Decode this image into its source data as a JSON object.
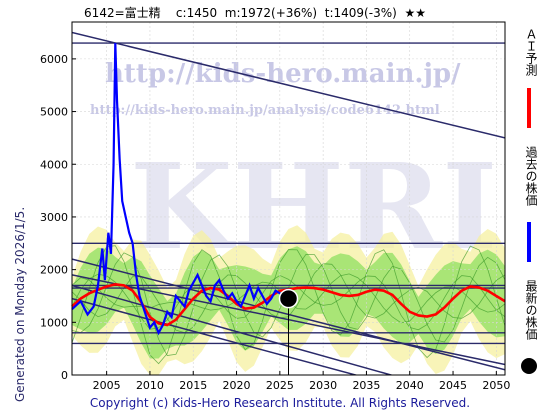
{
  "header": {
    "code_name": "6142=富士精",
    "current": "c:1450",
    "mean": "m:1972(+36%)",
    "target": "t:1409(-3%)",
    "stars": "★★"
  },
  "side_note": "Generated on Monday 2026/1/5.",
  "footer": "Copyright (c) Kids-Hero Research Institute. All Rights Reserved.",
  "watermark": {
    "url": "http://kids-hero.main.jp/",
    "url2": "http://kids-hero.main.jp/analysis/code6142.html",
    "logo": "KHRI"
  },
  "legend": {
    "ai_forecast": "ＡＩ予測",
    "past_price": "過去の株価",
    "latest_price": "最新の株価"
  },
  "colors": {
    "ai_forecast": "#ff0000",
    "past_price": "#0000ff",
    "latest_price": "#000000",
    "band_green": "#8fe060",
    "band_yellow": "#f5f0a0",
    "line_navy": "#2a2a6a"
  },
  "chart_data": {
    "type": "line",
    "x_ticks": [
      2005,
      2010,
      2015,
      2020,
      2025,
      2030,
      2035,
      2040,
      2045,
      2050
    ],
    "y_ticks": [
      0,
      1000,
      2000,
      3000,
      4000,
      5000,
      6000
    ],
    "xlim": [
      2001,
      2051
    ],
    "ylim": [
      0,
      6700
    ],
    "grid": true,
    "latest_point": {
      "x": 2026.0,
      "y": 1450
    },
    "past_price": [
      [
        2001.0,
        1250
      ],
      [
        2002.0,
        1400
      ],
      [
        2002.8,
        1150
      ],
      [
        2003.5,
        1300
      ],
      [
        2004.0,
        1700
      ],
      [
        2004.5,
        2400
      ],
      [
        2004.8,
        1800
      ],
      [
        2005.2,
        2700
      ],
      [
        2005.5,
        2300
      ],
      [
        2005.8,
        4000
      ],
      [
        2006.0,
        6300
      ],
      [
        2006.2,
        5200
      ],
      [
        2006.5,
        4100
      ],
      [
        2006.8,
        3300
      ],
      [
        2007.2,
        3000
      ],
      [
        2007.6,
        2700
      ],
      [
        2008.0,
        2500
      ],
      [
        2008.4,
        1900
      ],
      [
        2008.8,
        1500
      ],
      [
        2009.2,
        1300
      ],
      [
        2009.6,
        1100
      ],
      [
        2010.0,
        900
      ],
      [
        2010.5,
        1000
      ],
      [
        2011.0,
        800
      ],
      [
        2011.5,
        950
      ],
      [
        2012.0,
        1200
      ],
      [
        2012.5,
        1100
      ],
      [
        2013.0,
        1500
      ],
      [
        2013.5,
        1400
      ],
      [
        2014.0,
        1300
      ],
      [
        2014.5,
        1600
      ],
      [
        2015.0,
        1750
      ],
      [
        2015.5,
        1900
      ],
      [
        2016.0,
        1700
      ],
      [
        2016.5,
        1500
      ],
      [
        2017.0,
        1400
      ],
      [
        2017.5,
        1700
      ],
      [
        2018.0,
        1800
      ],
      [
        2018.5,
        1600
      ],
      [
        2019.0,
        1450
      ],
      [
        2019.5,
        1550
      ],
      [
        2020.0,
        1400
      ],
      [
        2020.5,
        1300
      ],
      [
        2021.0,
        1500
      ],
      [
        2021.5,
        1700
      ],
      [
        2022.0,
        1450
      ],
      [
        2022.5,
        1650
      ],
      [
        2023.0,
        1500
      ],
      [
        2023.5,
        1350
      ],
      [
        2024.0,
        1450
      ],
      [
        2024.5,
        1600
      ],
      [
        2025.0,
        1550
      ],
      [
        2025.5,
        1500
      ],
      [
        2026.0,
        1450
      ]
    ],
    "ai_forecast": [
      [
        2001.0,
        1300
      ],
      [
        2002.0,
        1450
      ],
      [
        2003.0,
        1550
      ],
      [
        2004.0,
        1620
      ],
      [
        2005.0,
        1680
      ],
      [
        2006.0,
        1720
      ],
      [
        2007.0,
        1700
      ],
      [
        2008.0,
        1600
      ],
      [
        2009.0,
        1380
      ],
      [
        2010.0,
        1100
      ],
      [
        2011.0,
        980
      ],
      [
        2012.0,
        950
      ],
      [
        2013.0,
        1050
      ],
      [
        2014.0,
        1250
      ],
      [
        2015.0,
        1450
      ],
      [
        2016.0,
        1600
      ],
      [
        2017.0,
        1650
      ],
      [
        2018.0,
        1620
      ],
      [
        2019.0,
        1500
      ],
      [
        2020.0,
        1350
      ],
      [
        2021.0,
        1260
      ],
      [
        2022.0,
        1280
      ],
      [
        2023.0,
        1370
      ],
      [
        2024.0,
        1500
      ],
      [
        2025.0,
        1600
      ],
      [
        2026.0,
        1620
      ],
      [
        2027.0,
        1650
      ],
      [
        2028.0,
        1660
      ],
      [
        2029.0,
        1650
      ],
      [
        2030.0,
        1620
      ],
      [
        2031.0,
        1570
      ],
      [
        2032.0,
        1520
      ],
      [
        2033.0,
        1500
      ],
      [
        2034.0,
        1520
      ],
      [
        2035.0,
        1580
      ],
      [
        2036.0,
        1620
      ],
      [
        2037.0,
        1600
      ],
      [
        2038.0,
        1520
      ],
      [
        2039.0,
        1350
      ],
      [
        2040.0,
        1200
      ],
      [
        2041.0,
        1130
      ],
      [
        2042.0,
        1110
      ],
      [
        2043.0,
        1150
      ],
      [
        2044.0,
        1280
      ],
      [
        2045.0,
        1450
      ],
      [
        2046.0,
        1600
      ],
      [
        2047.0,
        1680
      ],
      [
        2048.0,
        1660
      ],
      [
        2049.0,
        1600
      ],
      [
        2050.0,
        1500
      ],
      [
        2051.0,
        1400
      ]
    ],
    "horizontal_lines": [
      6300,
      2500,
      1700,
      1650,
      800,
      600
    ],
    "trend_lines": [
      [
        [
          2001,
          6500
        ],
        [
          2051,
          4500
        ]
      ],
      [
        [
          2001,
          2200
        ],
        [
          2051,
          100
        ]
      ],
      [
        [
          2001,
          1900
        ],
        [
          2051,
          200
        ]
      ],
      [
        [
          2001,
          1700
        ],
        [
          2040,
          -100
        ]
      ],
      [
        [
          2001,
          1450
        ],
        [
          2036,
          -100
        ]
      ]
    ]
  }
}
